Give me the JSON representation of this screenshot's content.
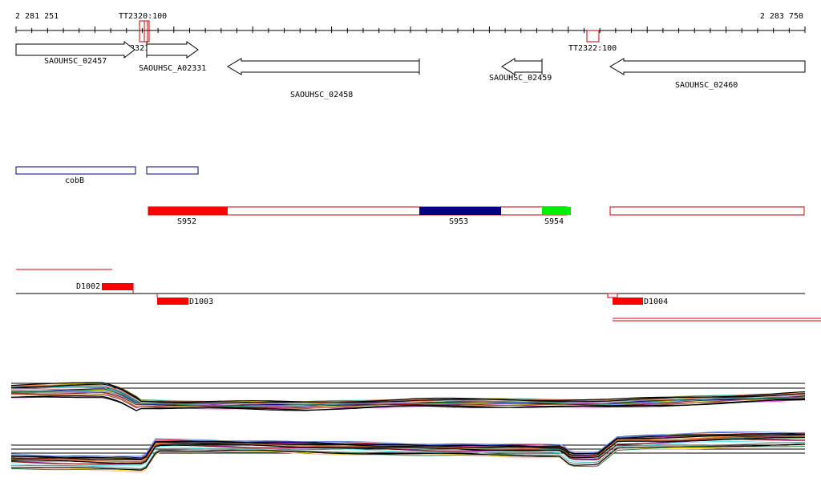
{
  "ruler": {
    "start_label": "2 281 251",
    "end_label": "2 283 750",
    "start": 2281251,
    "end": 2283750
  },
  "terminators": [
    {
      "label": "TT2320:100",
      "strand": "+"
    },
    {
      "label": "TT2321:100",
      "strand": "+"
    },
    {
      "label": "TT2322:100",
      "strand": "+"
    }
  ],
  "genes": [
    {
      "label": "SAOUHSC_02457",
      "strand": "+"
    },
    {
      "label": "SAOUHSC_A02331",
      "strand": "+"
    },
    {
      "label": "SAOUHSC_02458",
      "strand": "-"
    },
    {
      "label": "SAOUHSC_02459",
      "strand": "-"
    },
    {
      "label": "SAOUHSC_02460",
      "strand": "-"
    }
  ],
  "annotations": [
    {
      "label": "cobB",
      "color": "#000080"
    }
  ],
  "segments": [
    {
      "label": "S952",
      "color": "#ff0000"
    },
    {
      "label": "S953",
      "color": "#000080"
    },
    {
      "label": "S954",
      "color": "#00ff00"
    }
  ],
  "divergent": [
    {
      "label": "D1002"
    },
    {
      "label": "D1003"
    },
    {
      "label": "D1004"
    }
  ],
  "colors": {
    "accent_red": "#ff0000",
    "navy": "#000080",
    "green": "#00ff00"
  },
  "expression_profiles": {
    "track_count": 2,
    "palette": [
      "#e6194b",
      "#3cb44b",
      "#ffe119",
      "#4363d8",
      "#f58231",
      "#911eb4",
      "#46f0f0",
      "#f032e6",
      "#bcf60c",
      "#fabebe",
      "#008080",
      "#9a6324",
      "#800000",
      "#808000",
      "#000075",
      "#808080",
      "#a0522d",
      "#ff7f50",
      "#6495ed",
      "#2e8b57"
    ]
  }
}
